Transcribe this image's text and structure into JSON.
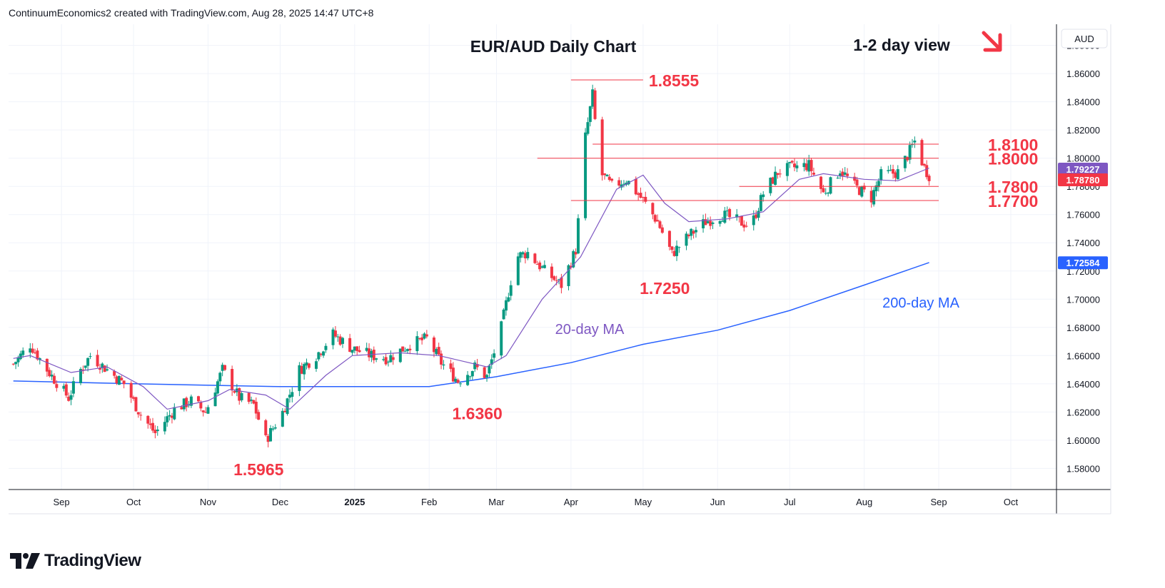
{
  "attribution": "ContinuumEconomics2 created with TradingView.com, Aug 28, 2025 14:47 UTC+8",
  "brand": "TradingView",
  "chart_data": {
    "type": "candlestick",
    "title": "EUR/AUD Daily Chart",
    "subtitle": "1-2 day view",
    "currency_label": "AUD",
    "y_ticks": [
      "1.88000",
      "1.86000",
      "1.84000",
      "1.82000",
      "1.80000",
      "1.78000",
      "1.76000",
      "1.74000",
      "1.72000",
      "1.70000",
      "1.68000",
      "1.66000",
      "1.64000",
      "1.62000",
      "1.60000",
      "1.58000"
    ],
    "y_tick_values": [
      1.88,
      1.86,
      1.84,
      1.82,
      1.8,
      1.78,
      1.76,
      1.74,
      1.72,
      1.7,
      1.68,
      1.66,
      1.64,
      1.62,
      1.6,
      1.58
    ],
    "ylim": [
      1.565,
      1.895
    ],
    "x_ticks": [
      {
        "label": "Sep",
        "date": "2024-09-01"
      },
      {
        "label": "Oct",
        "date": "2024-10-01"
      },
      {
        "label": "Nov",
        "date": "2024-11-01"
      },
      {
        "label": "Dec",
        "date": "2024-12-01"
      },
      {
        "label": "2025",
        "date": "2025-01-01"
      },
      {
        "label": "Feb",
        "date": "2025-02-01"
      },
      {
        "label": "Mar",
        "date": "2025-03-01"
      },
      {
        "label": "Apr",
        "date": "2025-04-01"
      },
      {
        "label": "May",
        "date": "2025-05-01"
      },
      {
        "label": "Jun",
        "date": "2025-06-01"
      },
      {
        "label": "Jul",
        "date": "2025-07-01"
      },
      {
        "label": "Aug",
        "date": "2025-08-01"
      },
      {
        "label": "Sep",
        "date": "2025-09-01"
      },
      {
        "label": "Oct",
        "date": "2025-10-01"
      }
    ],
    "xlim": [
      "2024-08-10",
      "2025-10-20"
    ],
    "price_path": [
      [
        "2024-08-12",
        1.654
      ],
      [
        "2024-08-19",
        1.668
      ],
      [
        "2024-08-26",
        1.65
      ],
      [
        "2024-09-04",
        1.63
      ],
      [
        "2024-09-09",
        1.65
      ],
      [
        "2024-09-13",
        1.66
      ],
      [
        "2024-09-20",
        1.65
      ],
      [
        "2024-09-27",
        1.64
      ],
      [
        "2024-10-04",
        1.618
      ],
      [
        "2024-10-10",
        1.605
      ],
      [
        "2024-10-18",
        1.622
      ],
      [
        "2024-10-25",
        1.628
      ],
      [
        "2024-10-31",
        1.62
      ],
      [
        "2024-11-07",
        1.65
      ],
      [
        "2024-11-14",
        1.63
      ],
      [
        "2024-11-20",
        1.625
      ],
      [
        "2024-11-25",
        1.6
      ],
      [
        "2024-12-02",
        1.62
      ],
      [
        "2024-12-09",
        1.65
      ],
      [
        "2024-12-16",
        1.66
      ],
      [
        "2024-12-23",
        1.675
      ],
      [
        "2024-12-31",
        1.665
      ],
      [
        "2025-01-08",
        1.66
      ],
      [
        "2025-01-15",
        1.658
      ],
      [
        "2025-01-24",
        1.668
      ],
      [
        "2025-01-31",
        1.672
      ],
      [
        "2025-02-06",
        1.655
      ],
      [
        "2025-02-13",
        1.642
      ],
      [
        "2025-02-20",
        1.652
      ],
      [
        "2025-02-25",
        1.645
      ],
      [
        "2025-03-03",
        1.68
      ],
      [
        "2025-03-09",
        1.73
      ],
      [
        "2025-03-14",
        1.733
      ],
      [
        "2025-03-21",
        1.72
      ],
      [
        "2025-03-28",
        1.71
      ],
      [
        "2025-04-03",
        1.735
      ],
      [
        "2025-04-07",
        1.815
      ],
      [
        "2025-04-10",
        1.845
      ],
      [
        "2025-04-13",
        1.79
      ],
      [
        "2025-04-18",
        1.78
      ],
      [
        "2025-04-24",
        1.785
      ],
      [
        "2025-05-01",
        1.77
      ],
      [
        "2025-05-07",
        1.755
      ],
      [
        "2025-05-13",
        1.732
      ],
      [
        "2025-05-20",
        1.745
      ],
      [
        "2025-05-27",
        1.755
      ],
      [
        "2025-06-03",
        1.76
      ],
      [
        "2025-06-10",
        1.755
      ],
      [
        "2025-06-15",
        1.752
      ],
      [
        "2025-06-20",
        1.775
      ],
      [
        "2025-06-26",
        1.79
      ],
      [
        "2025-07-01",
        1.793
      ],
      [
        "2025-07-09",
        1.795
      ],
      [
        "2025-07-15",
        1.775
      ],
      [
        "2025-07-22",
        1.792
      ],
      [
        "2025-07-28",
        1.78
      ],
      [
        "2025-08-04",
        1.772
      ],
      [
        "2025-08-08",
        1.788
      ],
      [
        "2025-08-15",
        1.79
      ],
      [
        "2025-08-20",
        1.805
      ],
      [
        "2025-08-22",
        1.812
      ],
      [
        "2025-08-26",
        1.793
      ],
      [
        "2025-08-28",
        1.788
      ]
    ],
    "ma20": [
      [
        "2024-08-12",
        1.658
      ],
      [
        "2024-08-19",
        1.66
      ],
      [
        "2024-09-05",
        1.648
      ],
      [
        "2024-09-20",
        1.652
      ],
      [
        "2024-10-05",
        1.638
      ],
      [
        "2024-10-15",
        1.622
      ],
      [
        "2024-11-01",
        1.628
      ],
      [
        "2024-11-10",
        1.636
      ],
      [
        "2024-11-25",
        1.632
      ],
      [
        "2024-12-05",
        1.622
      ],
      [
        "2024-12-20",
        1.646
      ],
      [
        "2024-12-31",
        1.66
      ],
      [
        "2025-01-20",
        1.662
      ],
      [
        "2025-02-05",
        1.66
      ],
      [
        "2025-02-25",
        1.652
      ],
      [
        "2025-03-05",
        1.66
      ],
      [
        "2025-03-20",
        1.7
      ],
      [
        "2025-04-05",
        1.73
      ],
      [
        "2025-04-20",
        1.778
      ],
      [
        "2025-05-01",
        1.788
      ],
      [
        "2025-05-10",
        1.768
      ],
      [
        "2025-05-20",
        1.755
      ],
      [
        "2025-06-05",
        1.757
      ],
      [
        "2025-06-20",
        1.762
      ],
      [
        "2025-07-05",
        1.785
      ],
      [
        "2025-07-15",
        1.789
      ],
      [
        "2025-08-01",
        1.785
      ],
      [
        "2025-08-15",
        1.784
      ],
      [
        "2025-08-28",
        1.793
      ]
    ],
    "ma200": [
      [
        "2024-08-12",
        1.642
      ],
      [
        "2024-10-01",
        1.64
      ],
      [
        "2024-12-01",
        1.638
      ],
      [
        "2025-02-01",
        1.638
      ],
      [
        "2025-03-01",
        1.645
      ],
      [
        "2025-04-01",
        1.655
      ],
      [
        "2025-05-01",
        1.668
      ],
      [
        "2025-06-01",
        1.678
      ],
      [
        "2025-07-01",
        1.692
      ],
      [
        "2025-08-01",
        1.71
      ],
      [
        "2025-08-28",
        1.726
      ]
    ],
    "horizontal_levels": [
      {
        "label": "1.8555",
        "value": 1.8555,
        "from": "2025-04-01",
        "to": "2025-05-01"
      },
      {
        "label": "1.8100",
        "value": 1.81,
        "from": "2025-04-10",
        "to": "2025-09-01"
      },
      {
        "label": "1.8000",
        "value": 1.8,
        "from": "2025-03-18",
        "to": "2025-09-01"
      },
      {
        "label": "1.7800",
        "value": 1.78,
        "from": "2025-06-10",
        "to": "2025-09-01"
      },
      {
        "label": "1.7700",
        "value": 1.77,
        "from": "2025-04-01",
        "to": "2025-09-01"
      }
    ],
    "price_annotations": [
      {
        "label": "1.5965",
        "date": "2024-11-25",
        "value": 1.5965
      },
      {
        "label": "1.6360",
        "date": "2025-02-24",
        "value": 1.636
      },
      {
        "label": "1.7250",
        "date": "2025-05-13",
        "value": 1.725
      }
    ],
    "ma_labels": {
      "ma20": "20-day MA",
      "ma200": "200-day MA"
    },
    "price_badges": [
      {
        "label": "1.79227",
        "value": 1.79227,
        "color": "#7e57c2"
      },
      {
        "label": "1.78780",
        "value": 1.7878,
        "color": "#f23645"
      },
      {
        "label": "1.72584",
        "value": 1.72584,
        "color": "#2962ff"
      }
    ],
    "grid": true
  },
  "colors": {
    "up": "#089981",
    "down": "#f23645",
    "ma20": "#7e57c2",
    "ma200": "#2962ff",
    "level": "#f23645",
    "annotation": "#f23645",
    "grid": "#f0f3fa",
    "axis_text": "#131722"
  },
  "icons": {
    "direction": "arrow-down-right-icon"
  }
}
